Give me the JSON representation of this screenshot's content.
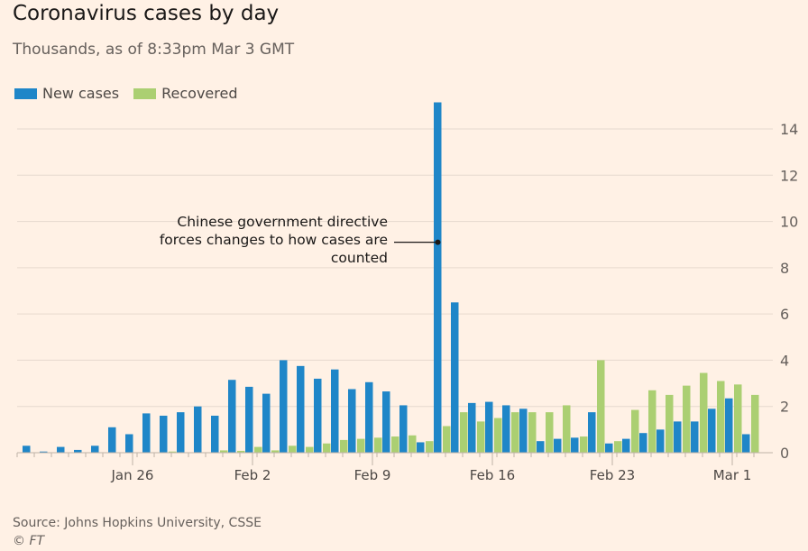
{
  "title": "Coronavirus cases by day",
  "subtitle": "Thousands, as of 8:33pm Mar 3 GMT",
  "source": "Source: Johns Hopkins University, CSSE",
  "credit": "© FT",
  "chart_data": {
    "type": "bar",
    "title": "Coronavirus cases by day",
    "ylabel": "Thousands",
    "ylim": [
      0,
      15
    ],
    "yticks": [
      0,
      2,
      4,
      6,
      8,
      10,
      12,
      14
    ],
    "grid": true,
    "legend_position": "top-left",
    "start_date": "Jan 20",
    "xtick_labels": [
      {
        "label": "Jan 26",
        "index": 6
      },
      {
        "label": "Feb 2",
        "index": 13
      },
      {
        "label": "Feb 9",
        "index": 20
      },
      {
        "label": "Feb 16",
        "index": 27
      },
      {
        "label": "Feb 23",
        "index": 34
      },
      {
        "label": "Mar 1",
        "index": 41
      }
    ],
    "series": [
      {
        "name": "New cases",
        "color": "#1f86c8",
        "values": [
          0.3,
          0.05,
          0.25,
          0.12,
          0.3,
          1.1,
          0.8,
          1.7,
          1.6,
          1.75,
          2.0,
          1.6,
          3.15,
          2.85,
          2.55,
          4.0,
          3.75,
          3.2,
          3.6,
          2.75,
          3.05,
          2.65,
          2.05,
          0.45,
          15.15,
          6.5,
          2.15,
          2.2,
          2.05,
          1.9,
          0.5,
          0.6,
          0.65,
          1.75,
          0.4,
          0.6,
          0.85,
          1.0,
          1.35,
          1.35,
          1.9,
          2.35,
          0.8
        ]
      },
      {
        "name": "Recovered",
        "color": "#abcf72",
        "values": [
          0,
          0,
          0,
          0,
          0,
          0,
          0,
          0,
          0.05,
          0,
          0,
          0.1,
          0.08,
          0.25,
          0.1,
          0.3,
          0.25,
          0.4,
          0.55,
          0.6,
          0.65,
          0.7,
          0.75,
          0.5,
          1.15,
          1.75,
          1.35,
          1.5,
          1.75,
          1.75,
          1.75,
          2.05,
          0.7,
          4.0,
          0.5,
          1.85,
          2.7,
          2.5,
          2.9,
          3.45,
          3.1,
          2.95,
          2.5
        ]
      }
    ],
    "annotations": [
      {
        "text": "Chinese government directive forces changes to how cases are counted",
        "index": 24,
        "value": 9.1
      }
    ]
  }
}
